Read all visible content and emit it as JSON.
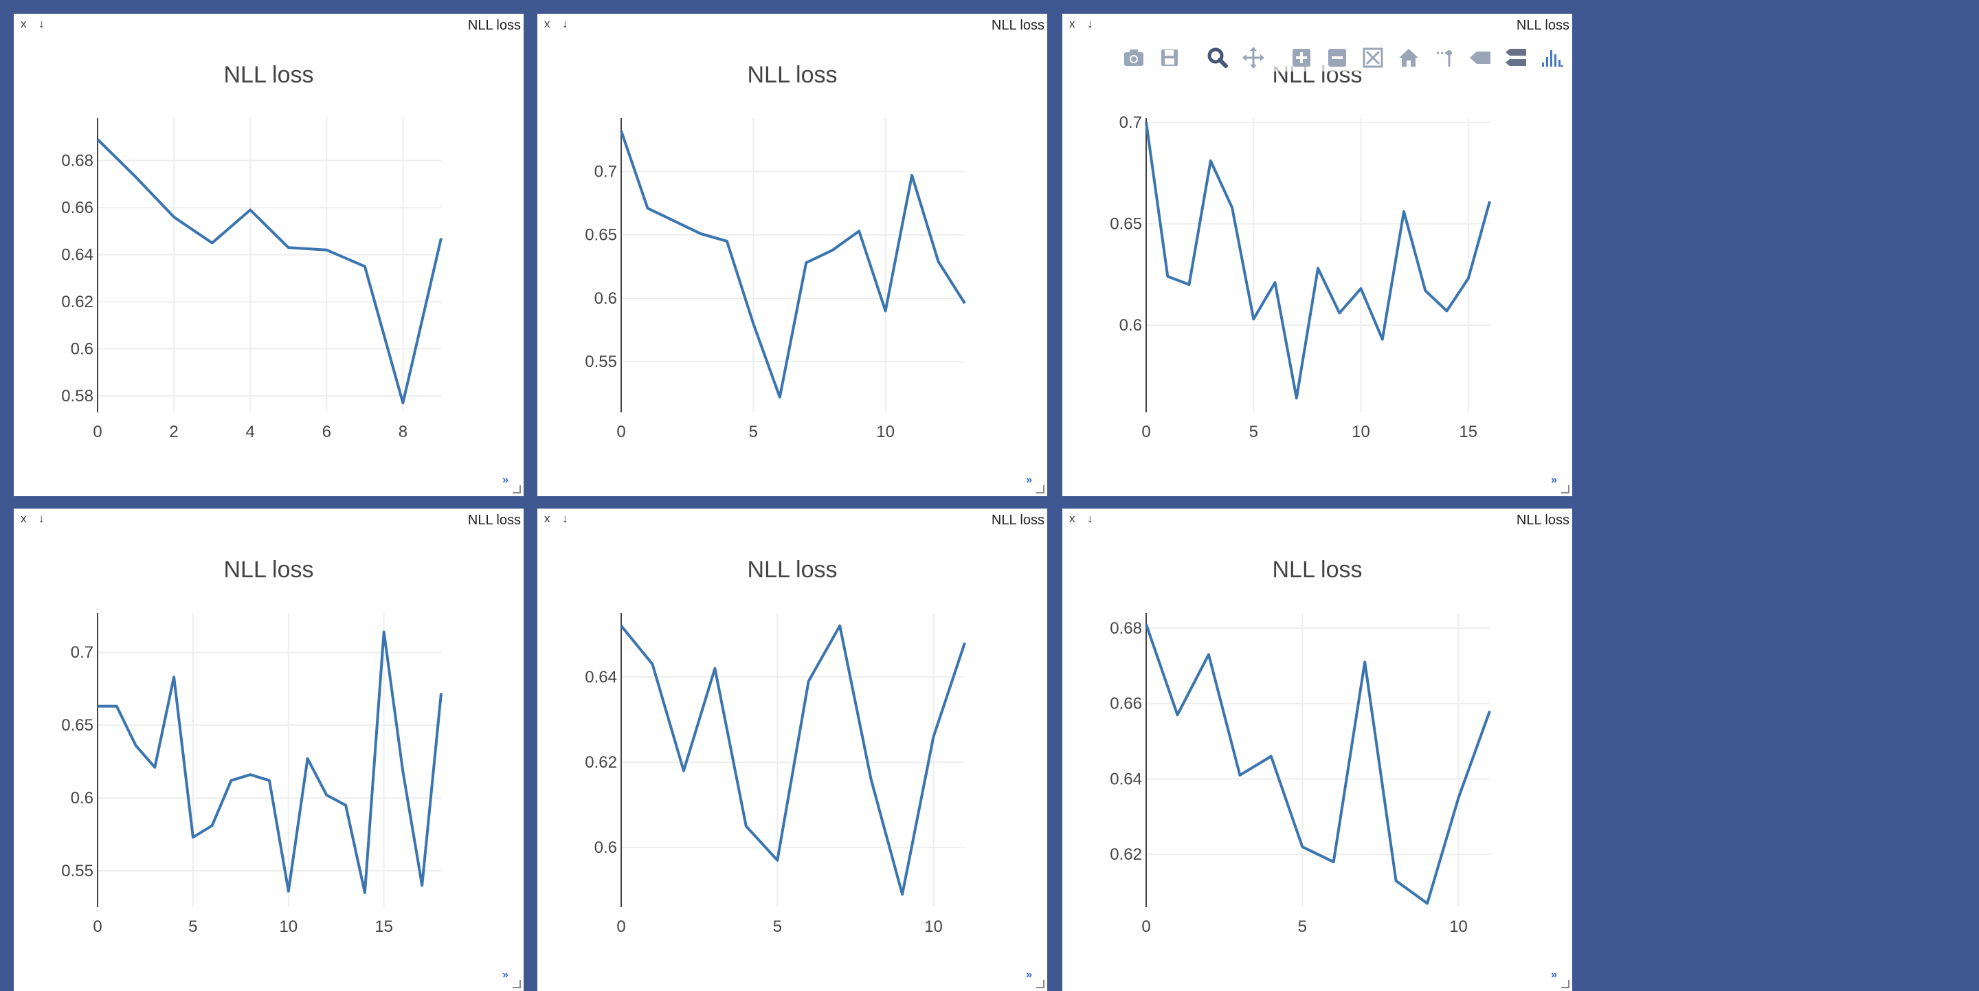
{
  "colors": {
    "background": "#3f5891",
    "pane": "#ffffff",
    "series": "#3a75b0",
    "modebar_icon": "#9aa5b8",
    "modebar_active": "#445577",
    "plotly_logo": "#3f76c7"
  },
  "pane_controls": {
    "close": "x",
    "download": "↓",
    "expand": "»"
  },
  "modebar": {
    "icons": [
      "camera-icon",
      "save-icon",
      "zoom-icon",
      "pan-icon",
      "zoom-in-icon",
      "zoom-out-icon",
      "autoscale-icon",
      "reset-axes-icon",
      "spike-lines-icon",
      "hover-closest-icon",
      "hover-compare-icon",
      "plotly-logo-icon"
    ]
  },
  "panes": [
    {
      "title": "NLL loss"
    },
    {
      "title": "NLL loss"
    },
    {
      "title": "NLL loss"
    },
    {
      "title": "NLL loss"
    },
    {
      "title": "NLL loss"
    },
    {
      "title": "NLL loss"
    }
  ],
  "chart_data": [
    {
      "type": "line",
      "title": "NLL loss",
      "x": [
        0,
        1,
        2,
        3,
        4,
        5,
        6,
        7,
        8,
        9
      ],
      "series": [
        {
          "values": [
            0.689,
            0.673,
            0.656,
            0.645,
            0.659,
            0.643,
            0.642,
            0.635,
            0.577,
            0.647
          ]
        }
      ],
      "xlim": [
        0,
        9
      ],
      "ylim": [
        0.573,
        0.698
      ],
      "xticks": [
        0,
        2,
        4,
        6,
        8
      ],
      "yticks": [
        0.58,
        0.6,
        0.62,
        0.64,
        0.66,
        0.68
      ],
      "xtick_labels": [
        "0",
        "2",
        "4",
        "6",
        "8"
      ],
      "ytick_labels": [
        "0.58",
        "0.6",
        "0.62",
        "0.64",
        "0.66",
        "0.68"
      ],
      "grid": true
    },
    {
      "type": "line",
      "title": "NLL loss",
      "x": [
        0,
        1,
        2,
        3,
        4,
        5,
        6,
        7,
        8,
        9,
        10,
        11,
        12,
        13
      ],
      "series": [
        {
          "values": [
            0.732,
            0.671,
            0.661,
            0.651,
            0.645,
            0.58,
            0.522,
            0.628,
            0.638,
            0.653,
            0.59,
            0.697,
            0.629,
            0.596
          ]
        }
      ],
      "xlim": [
        0,
        13
      ],
      "ylim": [
        0.51,
        0.742
      ],
      "xticks": [
        0,
        5,
        10
      ],
      "yticks": [
        0.55,
        0.6,
        0.65,
        0.7
      ],
      "xtick_labels": [
        "0",
        "5",
        "10"
      ],
      "ytick_labels": [
        "0.55",
        "0.6",
        "0.65",
        "0.7"
      ],
      "grid": true
    },
    {
      "type": "line",
      "title": "NLL loss",
      "x": [
        0,
        1,
        2,
        3,
        4,
        5,
        6,
        7,
        8,
        9,
        10,
        11,
        12,
        13,
        14,
        15,
        16
      ],
      "series": [
        {
          "values": [
            0.7,
            0.624,
            0.62,
            0.681,
            0.658,
            0.603,
            0.621,
            0.564,
            0.628,
            0.606,
            0.618,
            0.593,
            0.656,
            0.617,
            0.607,
            0.623,
            0.661
          ]
        }
      ],
      "xlim": [
        0,
        16
      ],
      "ylim": [
        0.557,
        0.702
      ],
      "xticks": [
        0,
        5,
        10,
        15
      ],
      "yticks": [
        0.6,
        0.65,
        0.7
      ],
      "xtick_labels": [
        "0",
        "5",
        "10",
        "15"
      ],
      "ytick_labels": [
        "0.6",
        "0.65",
        "0.7"
      ],
      "grid": true
    },
    {
      "type": "line",
      "title": "NLL loss",
      "x": [
        0,
        1,
        2,
        3,
        4,
        5,
        6,
        7,
        8,
        9,
        10,
        11,
        12,
        13,
        14,
        15,
        16,
        17,
        18
      ],
      "series": [
        {
          "values": [
            0.663,
            0.663,
            0.636,
            0.621,
            0.683,
            0.573,
            0.581,
            0.612,
            0.616,
            0.612,
            0.536,
            0.627,
            0.602,
            0.595,
            0.535,
            0.714,
            0.618,
            0.54,
            0.672
          ]
        }
      ],
      "xlim": [
        0,
        18
      ],
      "ylim": [
        0.525,
        0.727
      ],
      "xticks": [
        0,
        5,
        10,
        15
      ],
      "yticks": [
        0.55,
        0.6,
        0.65,
        0.7
      ],
      "xtick_labels": [
        "0",
        "5",
        "10",
        "15"
      ],
      "ytick_labels": [
        "0.55",
        "0.6",
        "0.65",
        "0.7"
      ],
      "grid": true
    },
    {
      "type": "line",
      "title": "NLL loss",
      "x": [
        0,
        1,
        2,
        3,
        4,
        5,
        6,
        7,
        8,
        9,
        10,
        11
      ],
      "series": [
        {
          "values": [
            0.652,
            0.643,
            0.618,
            0.642,
            0.605,
            0.597,
            0.639,
            0.652,
            0.616,
            0.589,
            0.626,
            0.648
          ]
        }
      ],
      "xlim": [
        0,
        11
      ],
      "ylim": [
        0.586,
        0.655
      ],
      "xticks": [
        0,
        5,
        10
      ],
      "yticks": [
        0.6,
        0.62,
        0.64
      ],
      "xtick_labels": [
        "0",
        "5",
        "10"
      ],
      "ytick_labels": [
        "0.6",
        "0.62",
        "0.64"
      ],
      "grid": true
    },
    {
      "type": "line",
      "title": "NLL loss",
      "x": [
        0,
        1,
        2,
        3,
        4,
        5,
        6,
        7,
        8,
        9,
        10,
        11
      ],
      "series": [
        {
          "values": [
            0.681,
            0.657,
            0.673,
            0.641,
            0.646,
            0.622,
            0.618,
            0.671,
            0.613,
            0.607,
            0.635,
            0.658
          ]
        }
      ],
      "xlim": [
        0,
        11
      ],
      "ylim": [
        0.606,
        0.684
      ],
      "xticks": [
        0,
        5,
        10
      ],
      "yticks": [
        0.62,
        0.64,
        0.66,
        0.68
      ],
      "xtick_labels": [
        "0",
        "5",
        "10"
      ],
      "ytick_labels": [
        "0.62",
        "0.64",
        "0.66",
        "0.68"
      ],
      "grid": true
    }
  ]
}
